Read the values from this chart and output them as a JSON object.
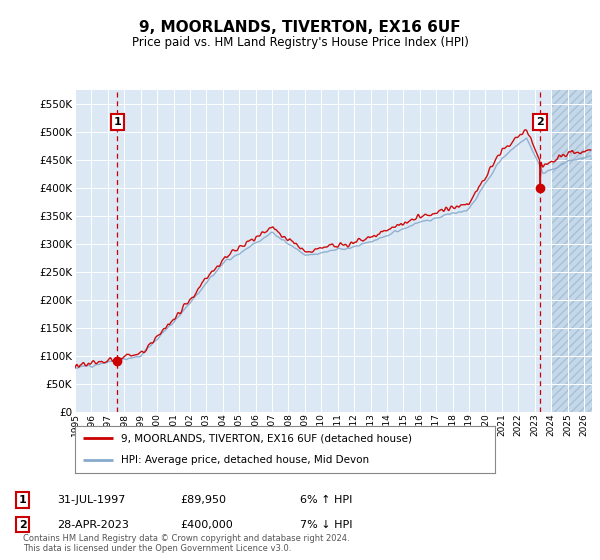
{
  "title": "9, MOORLANDS, TIVERTON, EX16 6UF",
  "subtitle": "Price paid vs. HM Land Registry's House Price Index (HPI)",
  "ylim": [
    0,
    575000
  ],
  "yticks": [
    0,
    50000,
    100000,
    150000,
    200000,
    250000,
    300000,
    350000,
    400000,
    450000,
    500000,
    550000
  ],
  "ytick_labels": [
    "£0",
    "£50K",
    "£100K",
    "£150K",
    "£200K",
    "£250K",
    "£300K",
    "£350K",
    "£400K",
    "£450K",
    "£500K",
    "£550K"
  ],
  "xmin_year": 1995,
  "xmax_year": 2026,
  "xticks": [
    1995,
    1996,
    1997,
    1998,
    1999,
    2000,
    2001,
    2002,
    2003,
    2004,
    2005,
    2006,
    2007,
    2008,
    2009,
    2010,
    2011,
    2012,
    2013,
    2014,
    2015,
    2016,
    2017,
    2018,
    2019,
    2020,
    2021,
    2022,
    2023,
    2024,
    2025,
    2026
  ],
  "bg_color": "#dce9f5",
  "hatch_color": "#c5d8ea",
  "grid_color": "#ffffff",
  "line_color_red": "#cc0000",
  "line_color_blue": "#88aacc",
  "point1_x": 1997.58,
  "point1_y": 89950,
  "point2_x": 2023.32,
  "point2_y": 400000,
  "legend_label_red": "9, MOORLANDS, TIVERTON, EX16 6UF (detached house)",
  "legend_label_blue": "HPI: Average price, detached house, Mid Devon",
  "annotation1_date": "31-JUL-1997",
  "annotation1_price": "£89,950",
  "annotation1_hpi": "6% ↑ HPI",
  "annotation2_date": "28-APR-2023",
  "annotation2_price": "£400,000",
  "annotation2_hpi": "7% ↓ HPI",
  "footer": "Contains HM Land Registry data © Crown copyright and database right 2024.\nThis data is licensed under the Open Government Licence v3.0."
}
